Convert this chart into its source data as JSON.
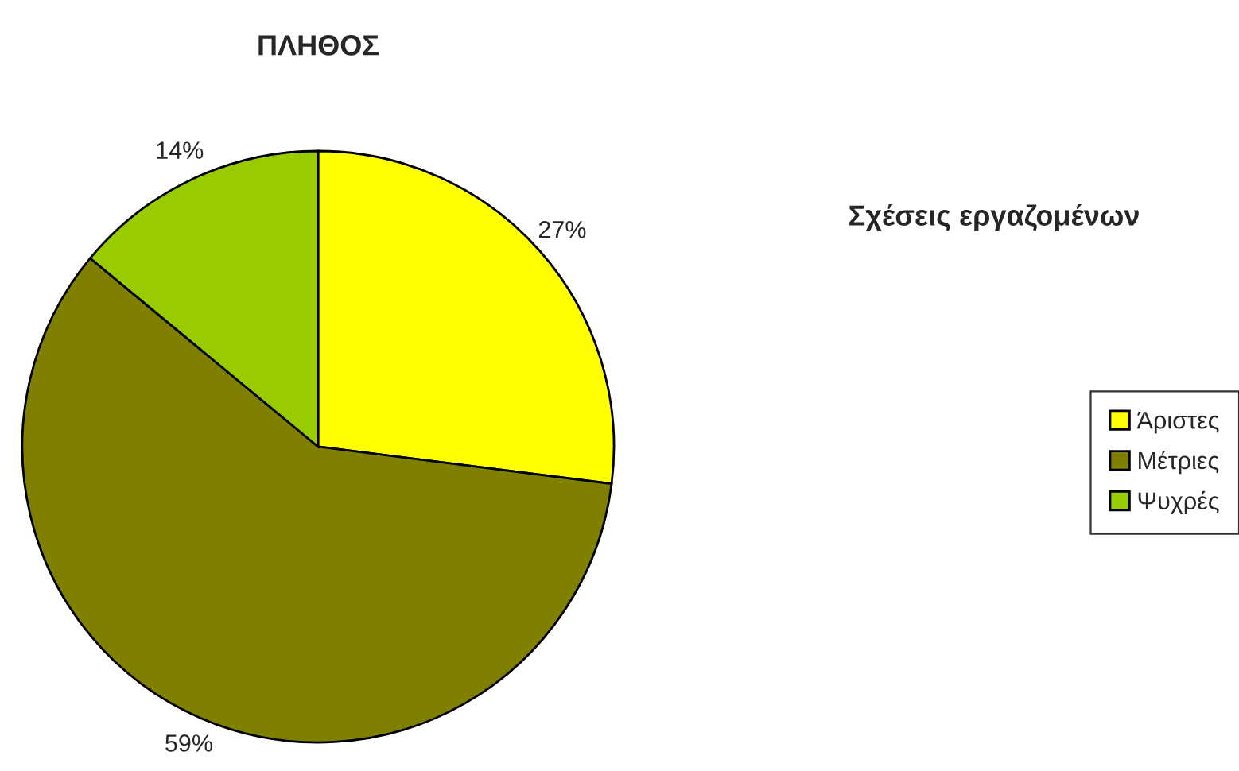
{
  "chart_data": {
    "type": "pie",
    "title": "ΠΛΗΘΟΣ",
    "legend_title": "Σχέσεις εργαζομένων",
    "categories": [
      "Άριστες",
      "Μέτριες",
      "Ψυχρές"
    ],
    "values": [
      27,
      59,
      14
    ],
    "value_labels": [
      "27%",
      "59%",
      "14%"
    ],
    "colors": [
      "#ffff00",
      "#808000",
      "#99cc00"
    ],
    "legend": "right"
  }
}
